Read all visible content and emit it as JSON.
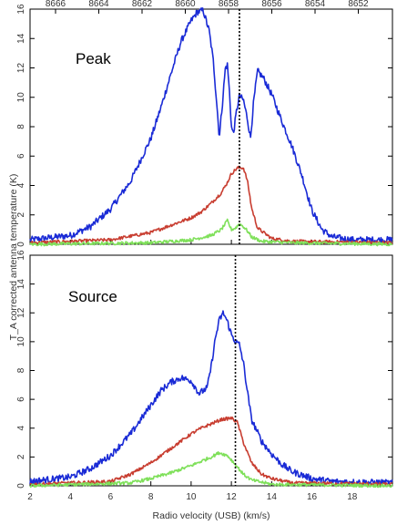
{
  "chart_data": [
    {
      "type": "line",
      "title": "Peak",
      "xlabel": "Radio velocity (USB) (km/s)",
      "ylabel": "T_A corrected antenna temperature (K)",
      "xlim": [
        2,
        20
      ],
      "ylim": [
        0,
        16
      ],
      "x_ticks": [
        2,
        4,
        6,
        8,
        10,
        12,
        14,
        16,
        18
      ],
      "y_ticks": [
        0,
        2,
        4,
        6,
        8,
        10,
        12,
        14,
        16
      ],
      "top_axis_ticks": [
        "8666",
        "8664",
        "8662",
        "8660",
        "8658",
        "8656",
        "8654",
        "8652"
      ],
      "marker_line_x": 12.4,
      "series": [
        {
          "color": "#1a2bd6",
          "x": [
            2,
            4,
            5,
            6,
            7,
            8,
            8.5,
            9,
            9.5,
            10,
            10.3,
            10.6,
            10.9,
            11.1,
            11.25,
            11.4,
            11.55,
            11.7,
            11.8,
            11.9,
            12.0,
            12.1,
            12.25,
            12.4,
            12.6,
            12.8,
            12.95,
            13.1,
            13.3,
            13.6,
            14,
            14.5,
            15,
            15.5,
            16,
            16.5,
            17,
            18,
            20
          ],
          "y": [
            0.3,
            0.6,
            1.2,
            2.4,
            4.3,
            7.2,
            9.3,
            11.6,
            13.8,
            15.2,
            15.8,
            15.9,
            14.5,
            12.5,
            10.0,
            7.3,
            9.5,
            12.0,
            12.2,
            10.5,
            8.0,
            7.5,
            9.0,
            10.1,
            9.8,
            8.5,
            7.2,
            9.6,
            11.8,
            11.3,
            10.2,
            8.4,
            6.7,
            4.7,
            2.3,
            1.0,
            0.5,
            0.3,
            0.3
          ]
        },
        {
          "color": "#c83d30",
          "x": [
            2,
            6,
            8,
            9,
            10,
            10.5,
            11,
            11.5,
            11.8,
            12.0,
            12.3,
            12.6,
            12.8,
            13.0,
            13.3,
            14,
            15,
            20
          ],
          "y": [
            0.1,
            0.3,
            0.8,
            1.3,
            1.8,
            2.2,
            2.8,
            3.5,
            4.2,
            4.8,
            5.2,
            5.2,
            4.3,
            2.5,
            1.1,
            0.4,
            0.2,
            0.1
          ]
        },
        {
          "color": "#7fe05a",
          "x": [
            2,
            8,
            10,
            11,
            11.5,
            11.8,
            12.0,
            12.2,
            12.4,
            12.6,
            12.8,
            13.0,
            13.5,
            15,
            20
          ],
          "y": [
            0.0,
            0.1,
            0.3,
            0.6,
            1.0,
            1.6,
            1.0,
            1.1,
            1.4,
            1.2,
            0.9,
            0.5,
            0.2,
            0.1,
            0.0
          ]
        }
      ]
    },
    {
      "type": "line",
      "title": "Source",
      "xlabel": "Radio velocity (USB) (km/s)",
      "ylabel": "T_A corrected antenna temperature (K)",
      "xlim": [
        2,
        20
      ],
      "ylim": [
        0,
        16
      ],
      "x_ticks": [
        2,
        4,
        6,
        8,
        10,
        12,
        14,
        16,
        18
      ],
      "y_ticks": [
        0,
        2,
        4,
        6,
        8,
        10,
        12,
        14,
        16
      ],
      "marker_line_x": 12.2,
      "series": [
        {
          "color": "#1a2bd6",
          "x": [
            2,
            4,
            5,
            6,
            7,
            8,
            8.5,
            9,
            9.5,
            10,
            10.4,
            10.8,
            11.0,
            11.2,
            11.4,
            11.6,
            11.8,
            12.0,
            12.2,
            12.4,
            12.6,
            12.8,
            13.0,
            13.5,
            14,
            14.5,
            15,
            16,
            17,
            20
          ],
          "y": [
            0.3,
            0.6,
            1.2,
            2.1,
            3.6,
            5.6,
            6.6,
            7.2,
            7.5,
            7.3,
            6.4,
            6.8,
            8.3,
            10.2,
            11.5,
            12.0,
            11.4,
            10.5,
            10.0,
            9.8,
            8.5,
            6.5,
            4.6,
            3.1,
            2.2,
            1.5,
            1.0,
            0.5,
            0.3,
            0.2
          ]
        },
        {
          "color": "#c83d30",
          "x": [
            2,
            6,
            7,
            8,
            9,
            10,
            10.5,
            11,
            11.5,
            12.0,
            12.3,
            12.6,
            13.0,
            13.5,
            14,
            15,
            20
          ],
          "y": [
            0.1,
            0.3,
            0.8,
            1.6,
            2.6,
            3.6,
            4.0,
            4.3,
            4.6,
            4.7,
            4.4,
            3.0,
            1.6,
            0.8,
            0.5,
            0.2,
            0.1
          ]
        },
        {
          "color": "#7fe05a",
          "x": [
            2,
            7,
            8,
            9,
            10,
            10.5,
            11,
            11.4,
            11.8,
            12.0,
            12.3,
            12.6,
            13.0,
            14,
            20
          ],
          "y": [
            0.0,
            0.2,
            0.5,
            0.9,
            1.4,
            1.7,
            2.0,
            2.3,
            2.1,
            1.8,
            1.3,
            0.8,
            0.4,
            0.1,
            0.0
          ]
        }
      ]
    }
  ]
}
